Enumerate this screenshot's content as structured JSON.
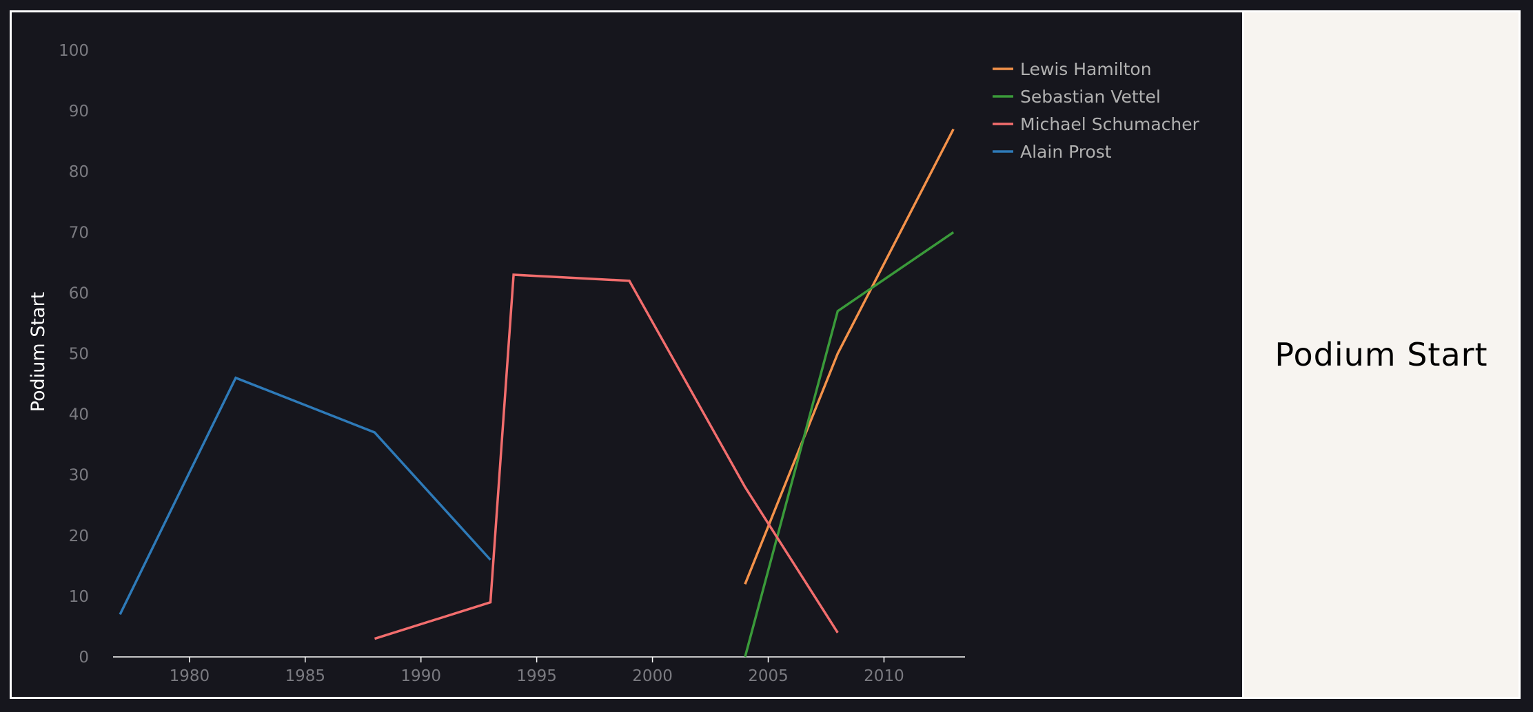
{
  "panel_title": "Podium Start",
  "chart_data": {
    "type": "line",
    "ylabel": "Podium Start",
    "xlabel": "",
    "xlim": [
      1976.7,
      2013.5
    ],
    "ylim": [
      0,
      100
    ],
    "x_ticks": [
      1980,
      1985,
      1990,
      1995,
      2000,
      2005,
      2010
    ],
    "y_ticks": [
      0,
      10,
      20,
      30,
      40,
      50,
      60,
      70,
      80,
      90,
      100
    ],
    "grid": false,
    "legend_position": "top-right",
    "colors": {
      "background": "#16161d",
      "axis": "#ffffff",
      "tick_text": "#7a7a80",
      "legend_text": "#b0b0b0",
      "ylabel_text": "#ffffff"
    },
    "series": [
      {
        "name": "Lewis Hamilton",
        "color": "#f4924a",
        "x": [
          2004,
          2008,
          2013
        ],
        "y": [
          12,
          50,
          87
        ]
      },
      {
        "name": "Sebastian Vettel",
        "color": "#3a9a3a",
        "x": [
          2004,
          2008,
          2013
        ],
        "y": [
          0,
          57,
          70
        ]
      },
      {
        "name": "Michael Schumacher",
        "color": "#f26d6d",
        "x": [
          1988,
          1993,
          1994,
          1999,
          2004,
          2008
        ],
        "y": [
          3,
          9,
          63,
          62,
          28,
          4
        ]
      },
      {
        "name": "Alain Prost",
        "color": "#2e7ab8",
        "x": [
          1977,
          1982,
          1988,
          1993
        ],
        "y": [
          7,
          46,
          37,
          16
        ]
      }
    ]
  }
}
